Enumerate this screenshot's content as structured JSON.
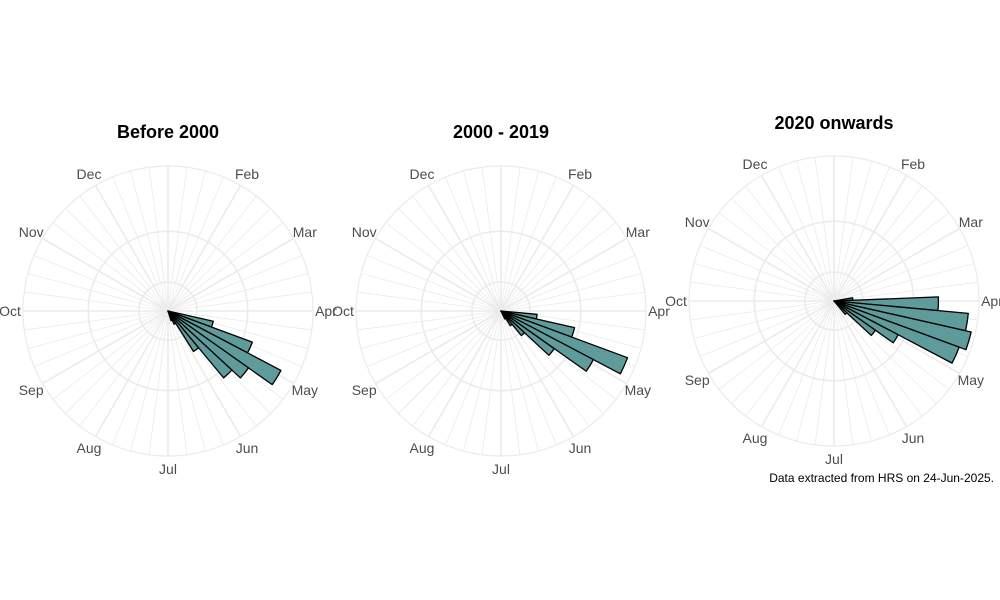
{
  "caption": "Data extracted from HRS on 24-Jun-2025.",
  "colors": {
    "bar_fill": "#5f9b9b",
    "bar_stroke": "#000000",
    "grid": "#ebebeb",
    "label": "#4d4d4d"
  },
  "chart_data": [
    {
      "type": "bar",
      "polar": true,
      "title": "Before 2000",
      "month_labels": [
        "Jan",
        "Feb",
        "Mar",
        "Apr",
        "May",
        "Jun",
        "Jul",
        "Aug",
        "Sep",
        "Oct",
        "Nov",
        "Dec"
      ],
      "bins_per_month": 4,
      "rlim": [
        0,
        1
      ],
      "grid": true,
      "bars": [
        {
          "month_position": 3.55,
          "value": 0.32
        },
        {
          "month_position": 3.8,
          "value": 0.62
        },
        {
          "month_position": 4.05,
          "value": 0.88
        },
        {
          "month_position": 4.3,
          "value": 0.68
        },
        {
          "month_position": 4.55,
          "value": 0.6
        },
        {
          "month_position": 4.8,
          "value": 0.33
        },
        {
          "month_position": 5.05,
          "value": 0.1
        },
        {
          "month_position": 5.3,
          "value": 0.07
        }
      ]
    },
    {
      "type": "bar",
      "polar": true,
      "title": "2000 - 2019",
      "month_labels": [
        "Jan",
        "Feb",
        "Mar",
        "Apr",
        "May",
        "Jun",
        "Jul",
        "Aug",
        "Sep",
        "Oct",
        "Nov",
        "Dec"
      ],
      "bins_per_month": 4,
      "rlim": [
        0,
        1
      ],
      "grid": true,
      "bars": [
        {
          "month_position": 3.3,
          "value": 0.25
        },
        {
          "month_position": 3.55,
          "value": 0.52
        },
        {
          "month_position": 3.8,
          "value": 0.93
        },
        {
          "month_position": 4.05,
          "value": 0.72
        },
        {
          "month_position": 4.3,
          "value": 0.45
        },
        {
          "month_position": 4.55,
          "value": 0.22
        },
        {
          "month_position": 4.8,
          "value": 0.12
        },
        {
          "month_position": 5.05,
          "value": 0.06
        }
      ]
    },
    {
      "type": "bar",
      "polar": true,
      "title": "2020 onwards",
      "month_labels": [
        "Jan",
        "Feb",
        "Mar",
        "Apr",
        "May",
        "Jun",
        "Jul",
        "Aug",
        "Sep",
        "Oct",
        "Nov",
        "Dec"
      ],
      "bins_per_month": 4,
      "rlim": [
        0,
        1
      ],
      "grid": true,
      "bars": [
        {
          "month_position": 2.8,
          "value": 0.13
        },
        {
          "month_position": 3.05,
          "value": 0.72
        },
        {
          "month_position": 3.3,
          "value": 0.93
        },
        {
          "month_position": 3.55,
          "value": 0.97
        },
        {
          "month_position": 3.8,
          "value": 0.92
        },
        {
          "month_position": 4.05,
          "value": 0.5
        },
        {
          "month_position": 4.3,
          "value": 0.35
        },
        {
          "month_position": 4.55,
          "value": 0.12
        }
      ]
    }
  ]
}
